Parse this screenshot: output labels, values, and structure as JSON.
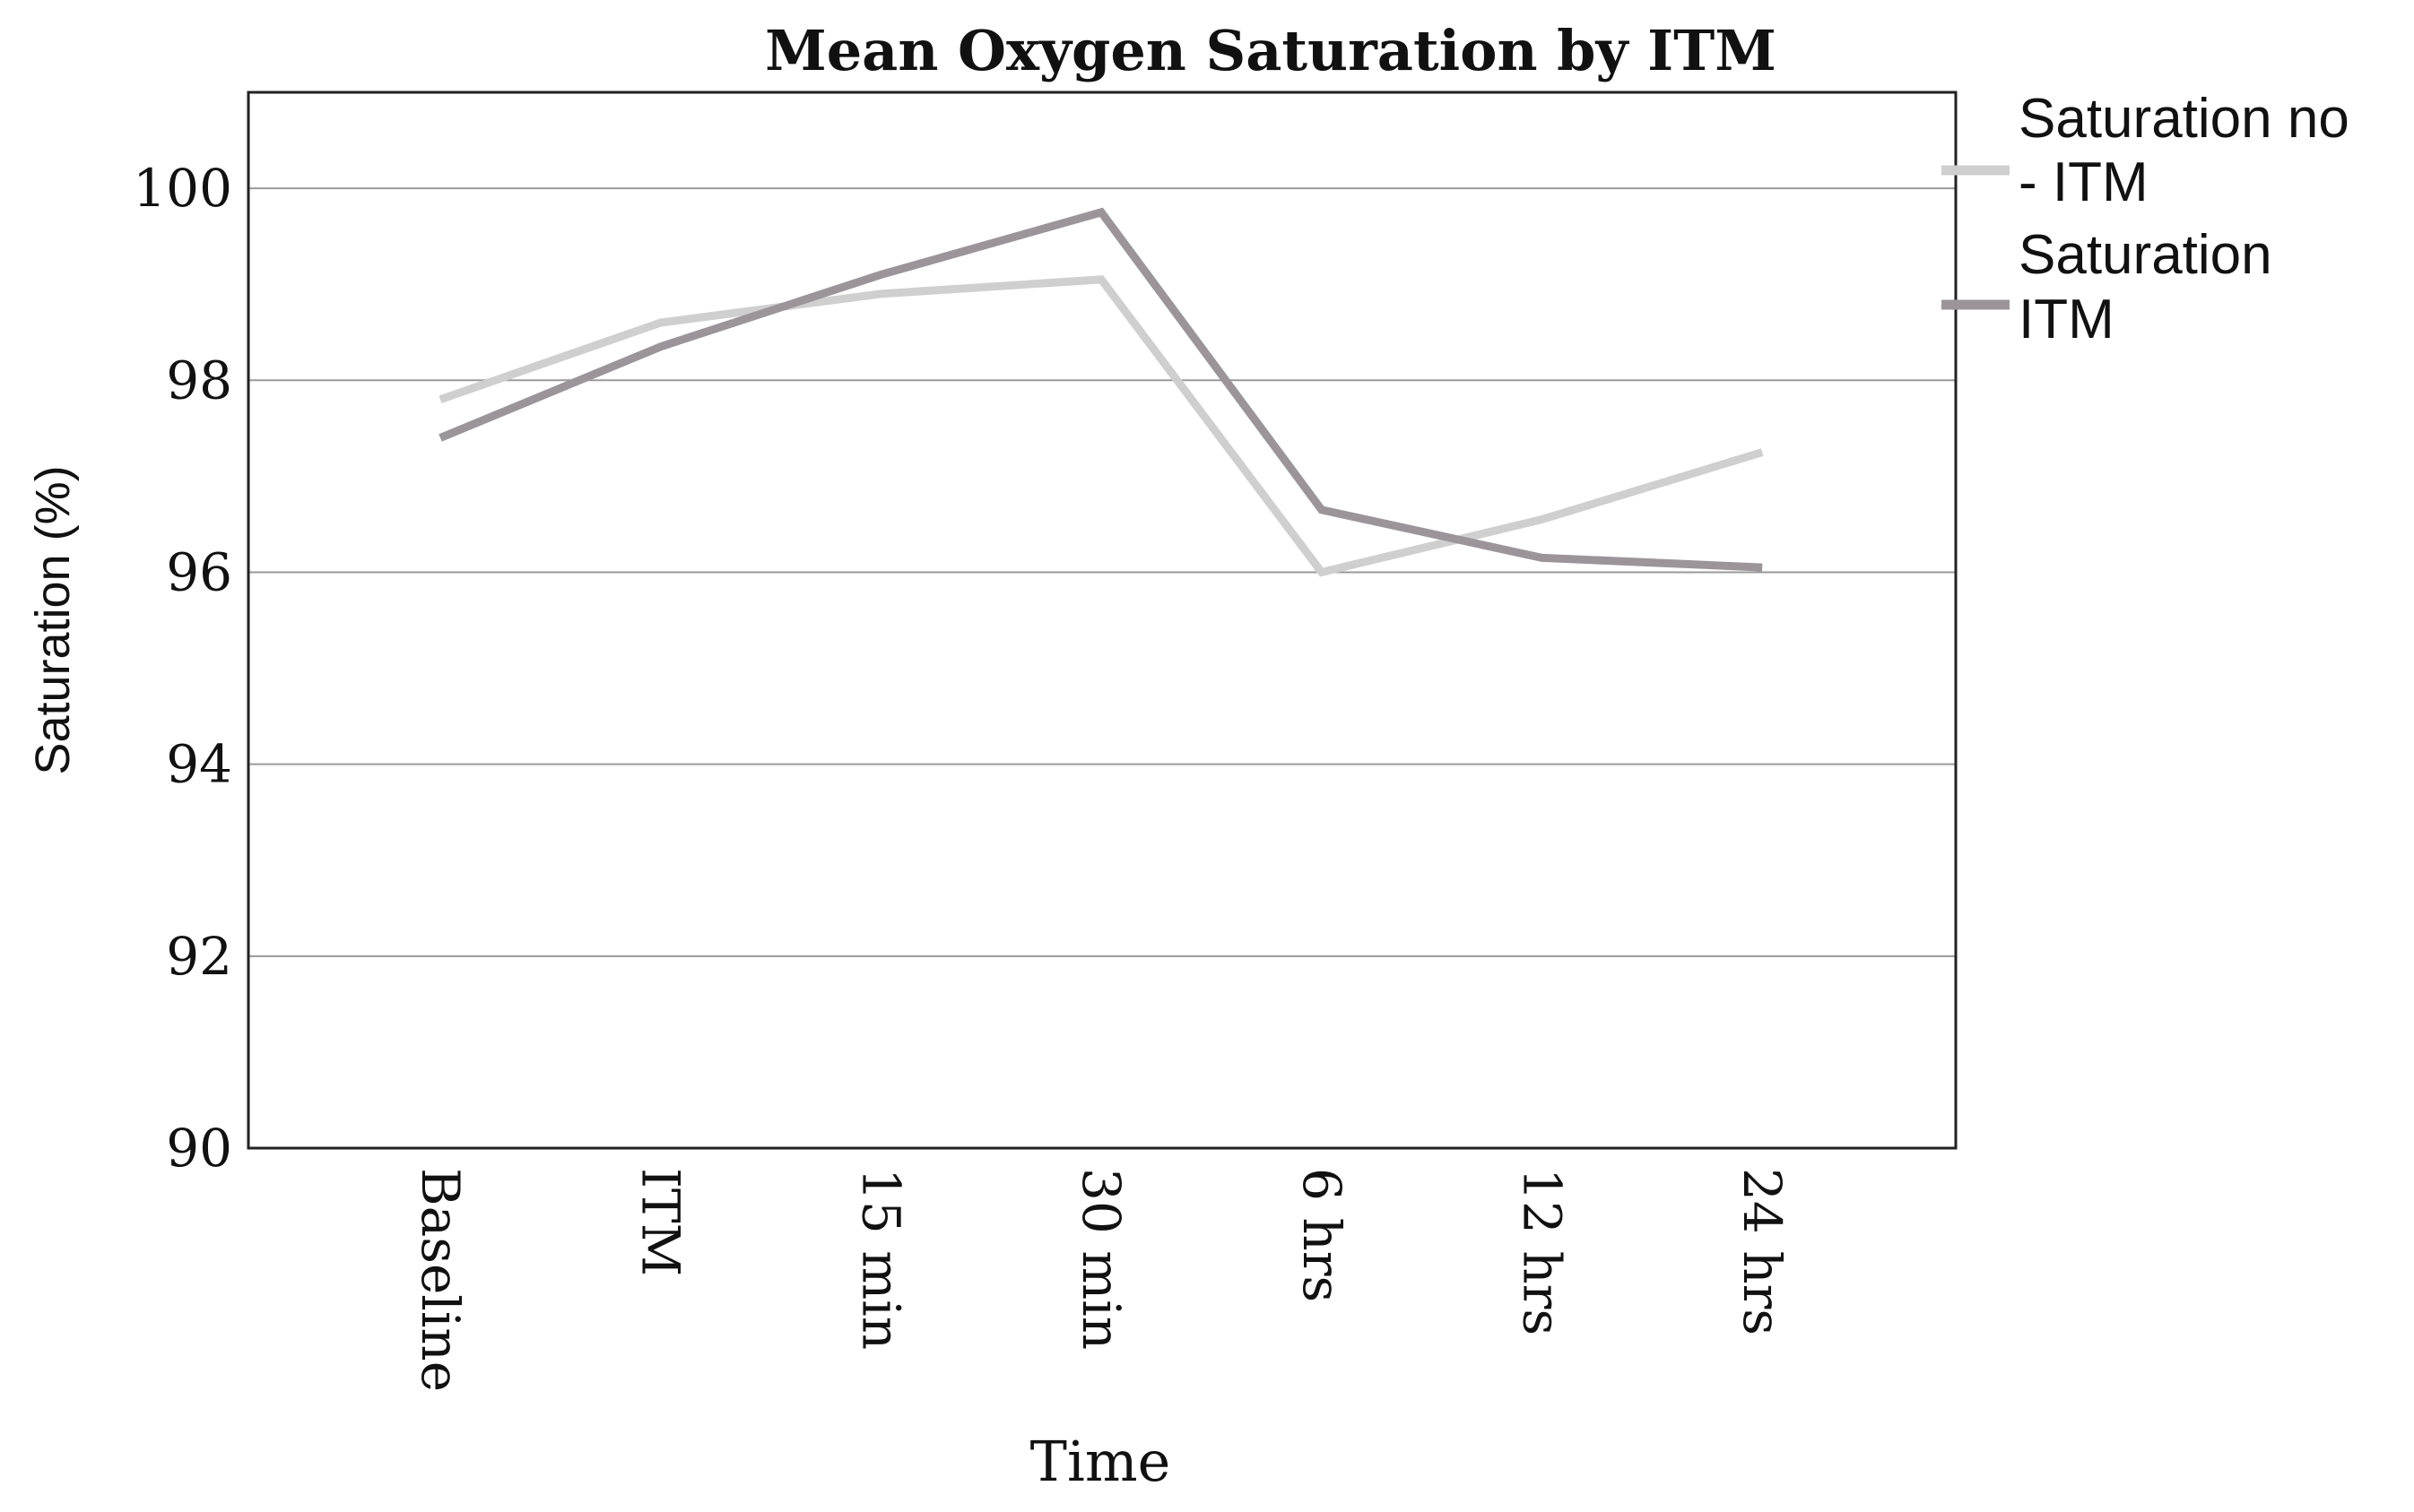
{
  "chart_data": {
    "type": "line",
    "title": "Mean Oxygen Saturation by ITM",
    "xlabel": "Time",
    "ylabel": "Saturation (%)",
    "categories": [
      "Baseline",
      "ITM",
      "15 min",
      "30 min",
      "6 hrs",
      "12 hrs",
      "24  hrs"
    ],
    "ylim": [
      90,
      101
    ],
    "yticks": [
      90,
      92,
      94,
      96,
      98,
      100
    ],
    "grid": true,
    "legend_position": "right",
    "series": [
      {
        "name": "Saturation no - ITM",
        "legend_lines": [
          "Saturation no",
          "- ITM"
        ],
        "color": "#cfcfcf",
        "values": [
          97.8,
          98.6,
          98.9,
          99.05,
          96.0,
          96.55,
          97.25
        ]
      },
      {
        "name": "Saturation ITM",
        "legend_lines": [
          "Saturation",
          "ITM"
        ],
        "color": "#9b9599",
        "values": [
          97.4,
          98.35,
          99.1,
          99.75,
          96.65,
          96.15,
          96.05
        ]
      }
    ]
  }
}
